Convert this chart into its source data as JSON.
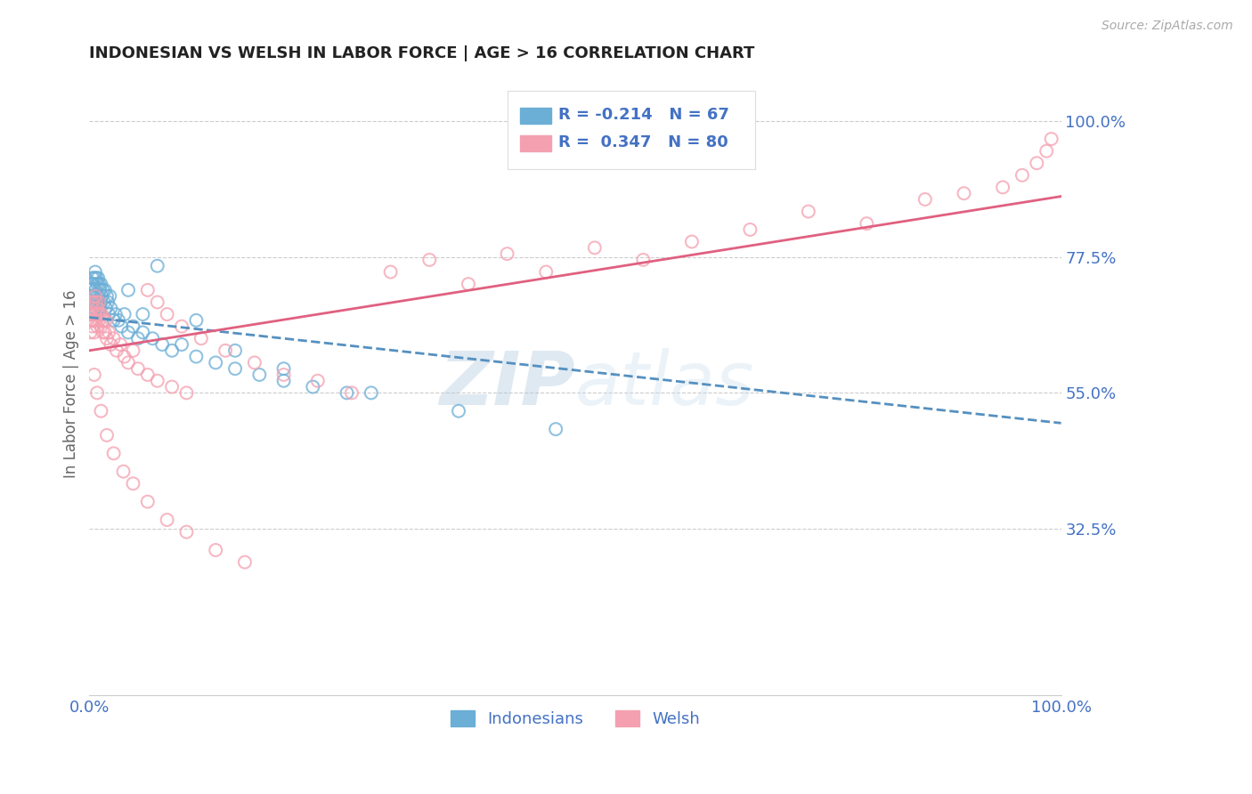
{
  "title": "INDONESIAN VS WELSH IN LABOR FORCE | AGE > 16 CORRELATION CHART",
  "source": "Source: ZipAtlas.com",
  "ylabel": "In Labor Force | Age > 16",
  "xlim": [
    0.0,
    1.0
  ],
  "ylim": [
    0.05,
    1.08
  ],
  "yticks": [
    0.325,
    0.55,
    0.775,
    1.0
  ],
  "ytick_labels": [
    "32.5%",
    "55.0%",
    "77.5%",
    "100.0%"
  ],
  "xticks": [
    0.0,
    1.0
  ],
  "xtick_labels": [
    "0.0%",
    "100.0%"
  ],
  "legend_r_indonesian": "-0.214",
  "legend_n_indonesian": "67",
  "legend_r_welsh": "0.347",
  "legend_n_welsh": "80",
  "indonesian_color": "#6baed6",
  "welsh_color": "#f4a0b0",
  "trend_indonesian_color": "#5590c0",
  "trend_welsh_color": "#e06080",
  "background_color": "#ffffff",
  "watermark": "ZIPatlas",
  "indo_trend_x0": 0.0,
  "indo_trend_y0": 0.675,
  "indo_trend_x1": 1.0,
  "indo_trend_y1": 0.5,
  "welsh_trend_x0": 0.0,
  "welsh_trend_y0": 0.62,
  "welsh_trend_x1": 1.0,
  "welsh_trend_y1": 0.875,
  "indonesian_x": [
    0.001,
    0.001,
    0.002,
    0.002,
    0.003,
    0.003,
    0.003,
    0.004,
    0.004,
    0.004,
    0.005,
    0.005,
    0.005,
    0.006,
    0.006,
    0.006,
    0.007,
    0.007,
    0.008,
    0.008,
    0.009,
    0.009,
    0.01,
    0.01,
    0.011,
    0.011,
    0.012,
    0.012,
    0.013,
    0.014,
    0.015,
    0.016,
    0.017,
    0.018,
    0.019,
    0.02,
    0.021,
    0.022,
    0.025,
    0.027,
    0.03,
    0.033,
    0.036,
    0.04,
    0.045,
    0.05,
    0.055,
    0.065,
    0.075,
    0.085,
    0.095,
    0.11,
    0.13,
    0.15,
    0.175,
    0.2,
    0.23,
    0.265,
    0.04,
    0.055,
    0.07,
    0.11,
    0.15,
    0.2,
    0.29,
    0.38,
    0.48
  ],
  "indonesian_y": [
    0.72,
    0.68,
    0.73,
    0.7,
    0.74,
    0.71,
    0.68,
    0.73,
    0.7,
    0.67,
    0.74,
    0.71,
    0.68,
    0.75,
    0.72,
    0.69,
    0.74,
    0.71,
    0.73,
    0.7,
    0.74,
    0.71,
    0.73,
    0.7,
    0.72,
    0.69,
    0.73,
    0.7,
    0.71,
    0.72,
    0.7,
    0.72,
    0.69,
    0.71,
    0.7,
    0.68,
    0.71,
    0.69,
    0.67,
    0.68,
    0.67,
    0.66,
    0.68,
    0.65,
    0.66,
    0.64,
    0.65,
    0.64,
    0.63,
    0.62,
    0.63,
    0.61,
    0.6,
    0.59,
    0.58,
    0.57,
    0.56,
    0.55,
    0.72,
    0.68,
    0.76,
    0.67,
    0.62,
    0.59,
    0.55,
    0.52,
    0.49
  ],
  "welsh_x": [
    0.001,
    0.001,
    0.002,
    0.002,
    0.003,
    0.003,
    0.004,
    0.004,
    0.005,
    0.005,
    0.006,
    0.006,
    0.007,
    0.007,
    0.008,
    0.008,
    0.009,
    0.01,
    0.01,
    0.011,
    0.012,
    0.013,
    0.014,
    0.015,
    0.016,
    0.017,
    0.018,
    0.02,
    0.022,
    0.025,
    0.028,
    0.032,
    0.036,
    0.04,
    0.045,
    0.05,
    0.06,
    0.07,
    0.085,
    0.1,
    0.06,
    0.07,
    0.08,
    0.095,
    0.115,
    0.14,
    0.17,
    0.2,
    0.235,
    0.27,
    0.31,
    0.35,
    0.39,
    0.43,
    0.47,
    0.52,
    0.57,
    0.62,
    0.68,
    0.74,
    0.8,
    0.86,
    0.9,
    0.94,
    0.96,
    0.975,
    0.985,
    0.99,
    0.005,
    0.008,
    0.012,
    0.018,
    0.025,
    0.035,
    0.045,
    0.06,
    0.08,
    0.1,
    0.13,
    0.16
  ],
  "welsh_y": [
    0.68,
    0.65,
    0.7,
    0.67,
    0.69,
    0.66,
    0.7,
    0.67,
    0.68,
    0.65,
    0.71,
    0.68,
    0.7,
    0.67,
    0.69,
    0.66,
    0.68,
    0.7,
    0.67,
    0.68,
    0.66,
    0.68,
    0.65,
    0.67,
    0.65,
    0.67,
    0.64,
    0.65,
    0.63,
    0.64,
    0.62,
    0.63,
    0.61,
    0.6,
    0.62,
    0.59,
    0.58,
    0.57,
    0.56,
    0.55,
    0.72,
    0.7,
    0.68,
    0.66,
    0.64,
    0.62,
    0.6,
    0.58,
    0.57,
    0.55,
    0.75,
    0.77,
    0.73,
    0.78,
    0.75,
    0.79,
    0.77,
    0.8,
    0.82,
    0.85,
    0.83,
    0.87,
    0.88,
    0.89,
    0.91,
    0.93,
    0.95,
    0.97,
    0.58,
    0.55,
    0.52,
    0.48,
    0.45,
    0.42,
    0.4,
    0.37,
    0.34,
    0.32,
    0.29,
    0.27
  ]
}
